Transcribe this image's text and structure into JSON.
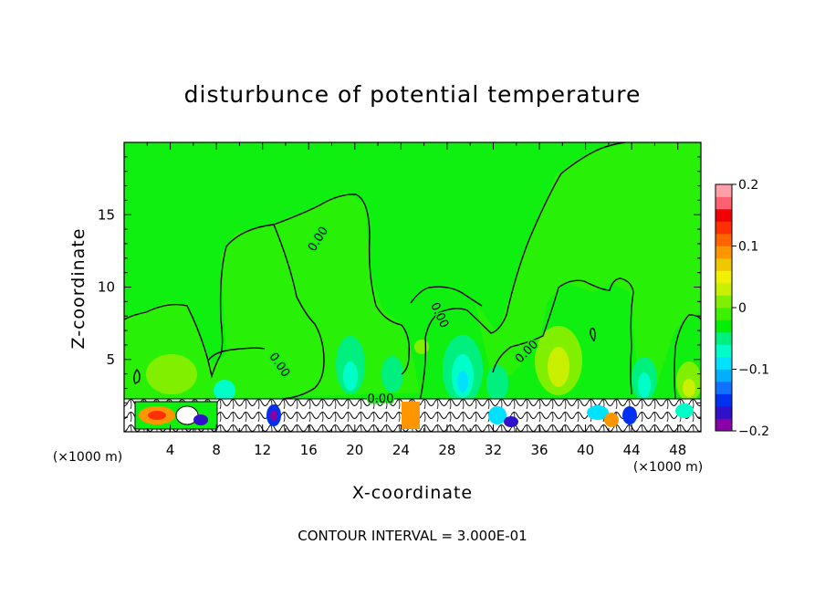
{
  "chart_data": {
    "type": "heatmap",
    "title": "disturbunce of potential temperature",
    "xlabel": "X-coordinate",
    "ylabel": "Z-coordinate",
    "x_unit": "(×1000 m)",
    "x_unit_right": "(×1000 m)",
    "xlim": [
      0,
      50
    ],
    "ylim": [
      0,
      20
    ],
    "x_ticks": [
      "4",
      "8",
      "12",
      "16",
      "20",
      "24",
      "28",
      "32",
      "36",
      "40",
      "44",
      "48"
    ],
    "y_ticks": [
      "5",
      "10",
      "15"
    ],
    "contour_labels": [
      "0.00",
      "0.00",
      "0.00",
      "0.00",
      "0.00"
    ],
    "footer": "CONTOUR INTERVAL = 3.000E-01",
    "colorbar": {
      "min": -0.2,
      "max": 0.2,
      "tick_labels": [
        "0.2",
        "0.1",
        "0",
        "−0.1",
        "−0.2"
      ],
      "colors": [
        "#8a00a8",
        "#3010c8",
        "#0030f0",
        "#1070ff",
        "#00b0ff",
        "#00e0ff",
        "#00ffc8",
        "#00f080",
        "#00f000",
        "#3cf000",
        "#80f000",
        "#c8f000",
        "#f0f000",
        "#f0c800",
        "#ff9600",
        "#ff6400",
        "#ff3000",
        "#f00000",
        "#ff6070",
        "#ffa0a8"
      ]
    },
    "background_value": 0.0,
    "cold_anomalies": [
      {
        "x": 29.5,
        "z": 4.5,
        "value": -0.08
      },
      {
        "x": 20.3,
        "z": 5.0,
        "value": -0.05
      },
      {
        "x": 43.8,
        "z": 3.5,
        "value": -0.07
      },
      {
        "x": 9.0,
        "z": 2.6,
        "value": -0.06
      },
      {
        "x": 33.0,
        "z": 3.0,
        "value": -0.05
      }
    ],
    "warm_anomalies": [
      {
        "x": 38.0,
        "z": 4.0,
        "value": 0.05
      },
      {
        "x": 3.5,
        "z": 3.5,
        "value": 0.04
      },
      {
        "x": 48.0,
        "z": 3.5,
        "value": 0.06
      }
    ]
  }
}
